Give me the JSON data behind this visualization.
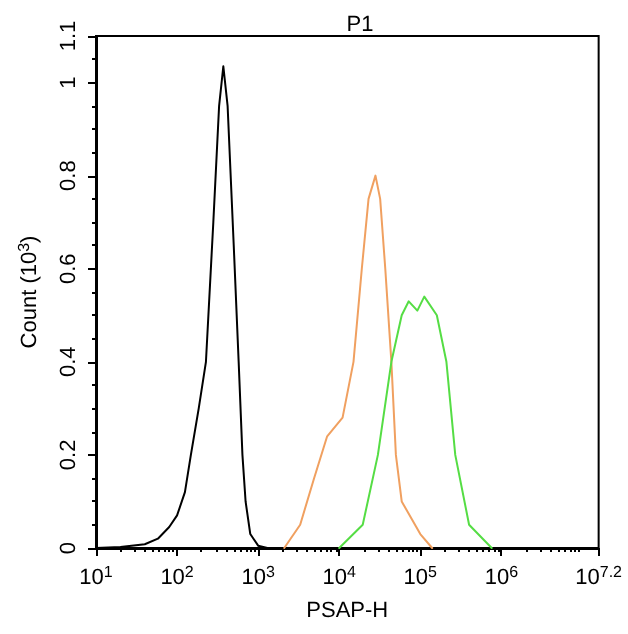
{
  "chart_data": {
    "type": "line",
    "title": "P1",
    "xlabel": "PSAP-H",
    "ylabel": "Count (10$^{3}$)",
    "log": "x",
    "xlim": [
      10,
      15848932
    ],
    "xticks": [
      {
        "value": 10,
        "label": "10$^{1}$"
      },
      {
        "value": 100,
        "label": "10$^{2}$"
      },
      {
        "value": 1000,
        "label": "10$^{3}$"
      },
      {
        "value": 10000,
        "label": "10$^{4}$"
      },
      {
        "value": 100000,
        "label": "10$^{5}$"
      },
      {
        "value": 1000000,
        "label": "10$^{6}$"
      },
      {
        "value": 15848932,
        "label": "10$^{7.2}$"
      }
    ],
    "ylim": [
      0,
      1.1
    ],
    "yticks": [
      0,
      0.2,
      0.4,
      0.6,
      0.8,
      1,
      1.1
    ],
    "grid": false,
    "marker": "none",
    "line_style": "solid",
    "series": [
      {
        "color": "#000000",
        "x": [
          10,
          20,
          40,
          58,
          80,
          100,
          125,
          148,
          185,
          227,
          280,
          330,
          372,
          420,
          500,
          575,
          640,
          700,
          800,
          1000,
          1300
        ],
        "values": [
          0,
          0.002,
          0.008,
          0.02,
          0.045,
          0.07,
          0.12,
          0.2,
          0.3,
          0.4,
          0.7,
          0.95,
          1.035,
          0.95,
          0.65,
          0.4,
          0.2,
          0.1,
          0.03,
          0.005,
          0
        ]
      },
      {
        "color": "#f0a060",
        "x": [
          2100,
          3300,
          4900,
          7100,
          11000,
          15000,
          19000,
          23000,
          28000,
          32000,
          37000,
          44000,
          50000,
          59000,
          100000,
          140000
        ],
        "values": [
          0,
          0.05,
          0.15,
          0.24,
          0.28,
          0.4,
          0.6,
          0.75,
          0.8,
          0.75,
          0.6,
          0.4,
          0.2,
          0.1,
          0.03,
          0
        ]
      },
      {
        "color": "#55dd44",
        "x": [
          10000,
          19500,
          30000,
          44000,
          59000,
          72000,
          92000,
          112000,
          160000,
          210000,
          270000,
          400000,
          760000
        ],
        "values": [
          0,
          0.05,
          0.2,
          0.4,
          0.5,
          0.53,
          0.51,
          0.54,
          0.5,
          0.4,
          0.2,
          0.05,
          0
        ]
      }
    ]
  }
}
